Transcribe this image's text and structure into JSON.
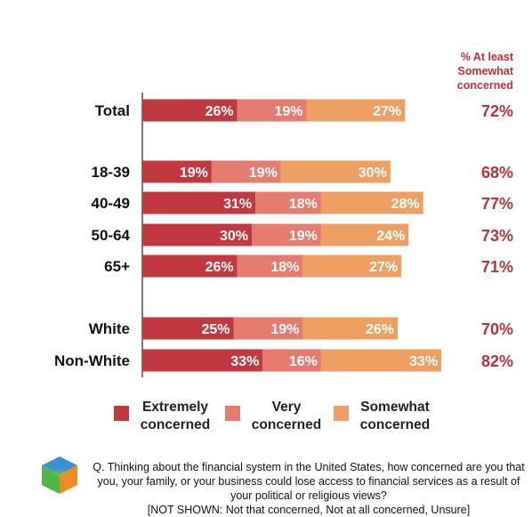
{
  "chart_data": {
    "type": "bar",
    "stacked": true,
    "orientation": "horizontal",
    "column_header": [
      "% At least",
      "Somewhat",
      "concerned"
    ],
    "rows": [
      {
        "label": "Total",
        "values": [
          26,
          19,
          27
        ],
        "total": "72%"
      },
      {
        "label": "18-39",
        "values": [
          19,
          19,
          30
        ],
        "total": "68%"
      },
      {
        "label": "40-49",
        "values": [
          31,
          18,
          28
        ],
        "total": "77%"
      },
      {
        "label": "50-64",
        "values": [
          30,
          19,
          24
        ],
        "total": "73%"
      },
      {
        "label": "65+",
        "values": [
          26,
          18,
          27
        ],
        "total": "71%"
      },
      {
        "label": "White",
        "values": [
          25,
          19,
          26
        ],
        "total": "70%"
      },
      {
        "label": "Non-White",
        "values": [
          33,
          16,
          33
        ],
        "total": "82%"
      }
    ],
    "series": [
      {
        "name": "Extremely concerned",
        "lines": [
          "Extremely",
          "concerned"
        ],
        "color": "#c0393f"
      },
      {
        "name": "Very concerned",
        "lines": [
          "Very",
          "concerned"
        ],
        "color": "#e57a6e"
      },
      {
        "name": "Somewhat concerned",
        "lines": [
          "Somewhat",
          "concerned"
        ],
        "color": "#eea063"
      }
    ],
    "total_color": "#b8323a",
    "grid": false,
    "legend_position": "bottom"
  },
  "footnote": {
    "question": "Q. Thinking about the financial system in the United States, how concerned are you that you, your family, or your business could lose access to financial services as a result of your political or religious views?",
    "not_shown": "[NOT SHOWN: Not that concerned, Not at all concerned, Unsure]"
  },
  "logo": {
    "icon": "cube-logo-icon",
    "colors": [
      "#3a8fd6",
      "#4cb848",
      "#f08a24",
      "#8cc63f"
    ]
  }
}
